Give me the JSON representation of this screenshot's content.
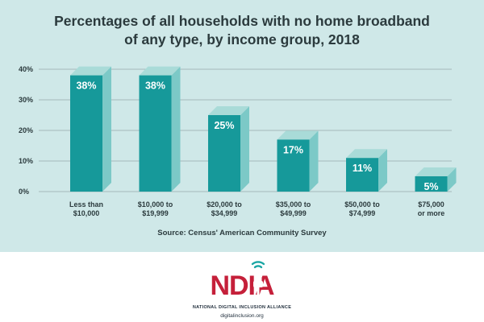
{
  "chart_data": {
    "type": "bar",
    "title": "Percentages of all households with no home broadband of any type, by income group, 2018",
    "categories": [
      [
        "Less than",
        "$10,000"
      ],
      [
        "$10,000 to",
        "$19,999"
      ],
      [
        "$20,000 to",
        "$34,999"
      ],
      [
        "$35,000 to",
        "$49,999"
      ],
      [
        "$50,000 to",
        "$74,999"
      ],
      [
        "$75,000",
        "or more"
      ]
    ],
    "values": [
      38,
      38,
      25,
      17,
      11,
      5
    ],
    "value_labels": [
      "38%",
      "38%",
      "25%",
      "17%",
      "11%",
      "5%"
    ],
    "yticks": [
      "0%",
      "10%",
      "20%",
      "30%",
      "40%"
    ],
    "ylim": [
      0,
      40
    ],
    "grid": true,
    "colors": {
      "front": "#16999a",
      "side": "#7cc9c7",
      "top": "#a9dbd8",
      "grid": "#98a9ab",
      "text": "#2b3a3d"
    }
  },
  "source": "Source: Census' American Community Survey",
  "logo": {
    "name": "NDIA",
    "tagline": "NATIONAL DIGITAL INCLUSION ALLIANCE",
    "url": "digitalinclusion.org",
    "colors": {
      "red": "#c5203a",
      "teal": "#1aa6a4",
      "navy": "#1e2c3a"
    }
  }
}
